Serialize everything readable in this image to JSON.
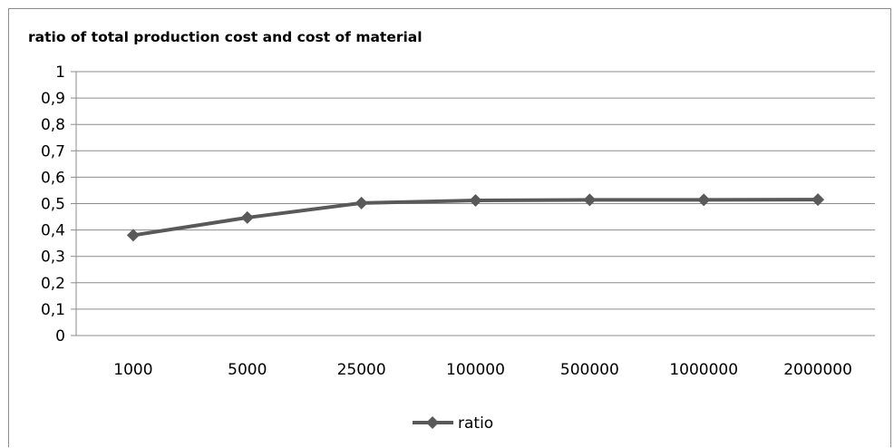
{
  "chart_data": {
    "type": "line",
    "title": "ratio of total production cost and cost of material",
    "xlabel": "",
    "ylabel": "",
    "categories": [
      "1000",
      "5000",
      "25000",
      "100000",
      "500000",
      "1000000",
      "2000000"
    ],
    "series": [
      {
        "name": "ratio",
        "values": [
          0.38,
          0.447,
          0.502,
          0.512,
          0.514,
          0.514,
          0.515
        ],
        "color": "#595959",
        "marker": "diamond"
      }
    ],
    "ylim": [
      0,
      1
    ],
    "yticks": [
      "0",
      "0,1",
      "0,2",
      "0,3",
      "0,4",
      "0,5",
      "0,6",
      "0,7",
      "0,8",
      "0,9",
      "1"
    ],
    "grid": "horizontal",
    "legend_position": "bottom"
  }
}
